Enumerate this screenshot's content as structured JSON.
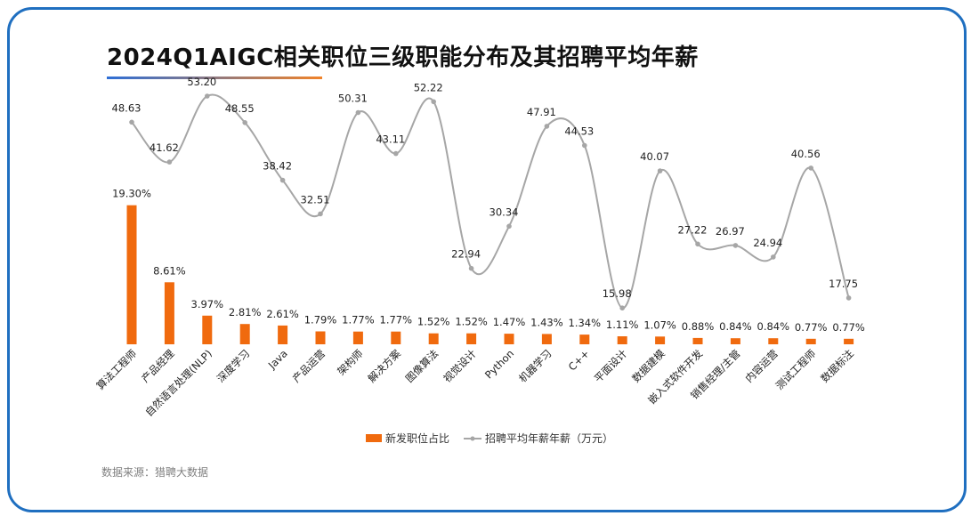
{
  "title": "2024Q1AIGC相关职位三级职能分布及其招聘平均年薪",
  "source": "数据来源：猎聘大数据",
  "chart_data": {
    "type": "bar+line",
    "categories": [
      "算法工程师",
      "产品经理",
      "自然语言处理(NLP)",
      "深度学习",
      "Java",
      "产品运营",
      "架构师",
      "解决方案",
      "图像算法",
      "视觉设计",
      "Python",
      "机器学习",
      "C++",
      "平面设计",
      "数据建模",
      "嵌入式软件开发",
      "销售经理/主管",
      "内容运营",
      "测试工程师",
      "数据标注"
    ],
    "series": [
      {
        "name": "新发职位占比",
        "type": "bar",
        "color": "#f06a0e",
        "values": [
          19.3,
          8.61,
          3.97,
          2.81,
          2.61,
          1.79,
          1.77,
          1.77,
          1.52,
          1.52,
          1.47,
          1.43,
          1.34,
          1.11,
          1.07,
          0.88,
          0.84,
          0.84,
          0.77,
          0.77
        ],
        "labels": [
          "19.30%",
          "8.61%",
          "3.97%",
          "2.81%",
          "2.61%",
          "1.79%",
          "1.77%",
          "1.77%",
          "1.52%",
          "1.52%",
          "1.47%",
          "1.43%",
          "1.34%",
          "1.11%",
          "1.07%",
          "0.88%",
          "0.84%",
          "0.84%",
          "0.77%",
          "0.77%"
        ]
      },
      {
        "name": "招聘平均年薪年薪（万元）",
        "type": "line",
        "smooth": true,
        "color": "#a6a6a6",
        "values": [
          48.63,
          41.62,
          53.2,
          48.55,
          38.42,
          32.51,
          50.31,
          43.11,
          52.22,
          22.94,
          30.34,
          47.91,
          44.53,
          15.98,
          40.07,
          27.22,
          26.97,
          24.94,
          40.56,
          17.75
        ],
        "labels": [
          "48.63",
          "41.62",
          "53.20",
          "48.55",
          "38.42",
          "32.51",
          "50.31",
          "43.11",
          "52.22",
          "22.94",
          "30.34",
          "47.91",
          "44.53",
          "15.98",
          "40.07",
          "27.22",
          "26.97",
          "24.94",
          "40.56",
          "17.75"
        ]
      }
    ],
    "legend_position": "bottom",
    "grid": false
  }
}
